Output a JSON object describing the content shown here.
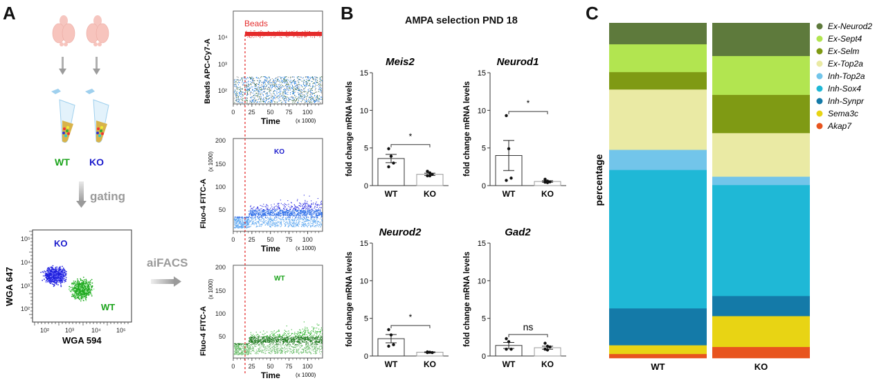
{
  "panels": {
    "A": {
      "letter": "A",
      "group_labels": {
        "wt": "WT",
        "ko": "KO"
      },
      "gating_label": "gating",
      "aifacs_label": "aiFACS",
      "colors": {
        "wt": "#1aa31a",
        "ko": "#1a1acc",
        "arrow": "#a8a8a8",
        "beads": "#e53030"
      },
      "gate_plot": {
        "xlabel": "WGA 594",
        "ylabel": "WGA 647",
        "xticks": [
          "10²",
          "10³",
          "10⁴",
          "10⁵"
        ],
        "yticks": [
          "10²",
          "10³",
          "10⁴",
          "10⁵"
        ],
        "ko_label": "KO",
        "wt_label": "WT"
      },
      "time_plots": [
        {
          "id": "beads",
          "ylabel": "Beads APC-Cy7-A",
          "yticks": [
            "10²",
            "10³",
            "10⁴"
          ],
          "xticks": [
            "0",
            "25",
            "50",
            "75",
            "100"
          ],
          "xlabel": "Time",
          "xunit": "(x 1000)",
          "annotation": "Beads"
        },
        {
          "id": "ko",
          "ylabel": "Fluo-4 FITC-A",
          "yunit": "(x 1000)",
          "yticks": [
            "50",
            "100",
            "150",
            "200"
          ],
          "xticks": [
            "0",
            "25",
            "50",
            "75",
            "100"
          ],
          "xlabel": "Time",
          "xunit": "(x 1000)",
          "annotation": "KO"
        },
        {
          "id": "wt",
          "ylabel": "Fluo-4 FITC-A",
          "yunit": "(x 1000)",
          "yticks": [
            "50",
            "100",
            "150",
            "200"
          ],
          "xticks": [
            "0",
            "25",
            "50",
            "75",
            "100"
          ],
          "xlabel": "Time",
          "xunit": "(x 1000)",
          "annotation": "WT"
        }
      ]
    },
    "B": {
      "letter": "B",
      "title": "AMPA selection PND 18"
    },
    "C": {
      "letter": "C"
    }
  },
  "chart_data": [
    {
      "type": "bar",
      "title": "Meis2",
      "categories": [
        "WT",
        "KO"
      ],
      "values": [
        3.6,
        1.5
      ],
      "sem": [
        0.55,
        0.15
      ],
      "points": [
        [
          4.9,
          3.9,
          3.0,
          2.5
        ],
        [
          1.9,
          1.7,
          1.5,
          1.3,
          1.3
        ]
      ],
      "significance": "*",
      "ylabel": "fold change mRNA levels",
      "yticks": [
        0,
        5,
        10,
        15
      ],
      "ylim": [
        0,
        15
      ]
    },
    {
      "type": "bar",
      "title": "Neurod1",
      "categories": [
        "WT",
        "KO"
      ],
      "values": [
        4.0,
        0.55
      ],
      "sem": [
        2.0,
        0.1
      ],
      "points": [
        [
          9.3,
          4.9,
          1.0,
          0.7
        ],
        [
          0.85,
          0.6,
          0.5,
          0.45,
          0.4
        ]
      ],
      "significance": "*",
      "ylabel": "fold change mRNA levels",
      "yticks": [
        0,
        5,
        10,
        15
      ],
      "ylim": [
        0,
        15
      ]
    },
    {
      "type": "bar",
      "title": "Neurod2",
      "categories": [
        "WT",
        "KO"
      ],
      "values": [
        2.3,
        0.5
      ],
      "sem": [
        0.55,
        0.05
      ],
      "points": [
        [
          3.5,
          2.8,
          1.5,
          1.3
        ],
        [
          0.55,
          0.5,
          0.45,
          0.45
        ]
      ],
      "significance": "*",
      "ylabel": "fold change mRNA levels",
      "yticks": [
        0,
        5,
        10,
        15
      ],
      "ylim": [
        0,
        15
      ]
    },
    {
      "type": "bar",
      "title": "Gad2",
      "categories": [
        "WT",
        "KO"
      ],
      "values": [
        1.4,
        1.1
      ],
      "sem": [
        0.4,
        0.2
      ],
      "points": [
        [
          2.3,
          1.9,
          0.9,
          0.9
        ],
        [
          1.7,
          1.3,
          1.2,
          0.9,
          0.8
        ]
      ],
      "significance": "ns",
      "ylabel": "fold change mRNA levels",
      "yticks": [
        0,
        5,
        10,
        15
      ],
      "ylim": [
        0,
        15
      ]
    },
    {
      "type": "bar",
      "subtype": "stacked-percent",
      "title": "",
      "ylabel": "percentage",
      "categories": [
        "WT",
        "KO"
      ],
      "legend_placement": "right",
      "series": [
        {
          "name": "Ex-Neurod2",
          "color": "#5e7a3c",
          "values": [
            6.4,
            9.9
          ]
        },
        {
          "name": "Ex-Sept4",
          "color": "#b2e550",
          "values": [
            8.3,
            11.6
          ]
        },
        {
          "name": "Ex-Selm",
          "color": "#7f9a14",
          "values": [
            5.2,
            11.4
          ]
        },
        {
          "name": "Ex-Top2a",
          "color": "#eaeaa4",
          "values": [
            18.0,
            13.0
          ]
        },
        {
          "name": "Inh-Top2a",
          "color": "#72c5ea",
          "values": [
            6.0,
            2.5
          ]
        },
        {
          "name": "Inh-Sox4",
          "color": "#1fb8d6",
          "values": [
            41.3,
            33.1
          ]
        },
        {
          "name": "Inh-Synpr",
          "color": "#147aa8",
          "values": [
            11.0,
            6.0
          ]
        },
        {
          "name": "Sema3c",
          "color": "#e8d414",
          "values": [
            2.6,
            9.2
          ]
        },
        {
          "name": "Akap7",
          "color": "#e8541e",
          "values": [
            1.2,
            3.3
          ]
        }
      ]
    }
  ]
}
